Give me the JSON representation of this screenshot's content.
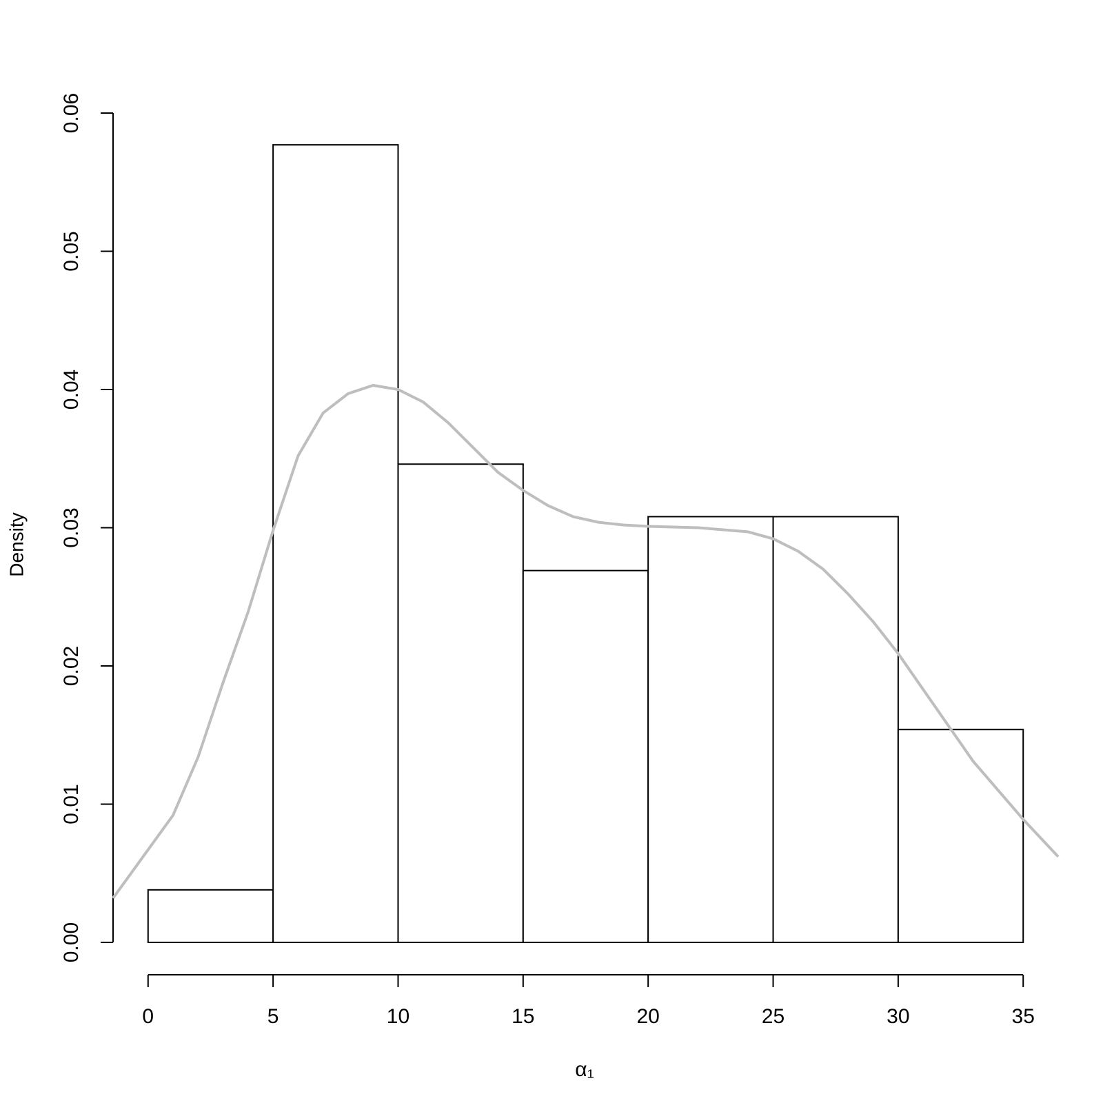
{
  "chart_data": {
    "type": "histogram",
    "xlabel": "α₁",
    "ylabel": "Density",
    "bins": [
      0,
      5,
      10,
      15,
      20,
      25,
      30,
      35
    ],
    "values": [
      0.0038,
      0.0577,
      0.0346,
      0.0269,
      0.0308,
      0.0308,
      0.0154
    ],
    "color": "#ffffff",
    "edgecolor": "#000000",
    "density": {
      "color": "#bebebe",
      "x": [
        -1.4,
        0,
        1,
        2,
        3,
        4,
        5,
        6,
        7,
        8,
        9,
        10,
        11,
        12,
        13,
        14,
        15,
        16,
        17,
        18,
        19,
        20,
        22,
        24,
        25,
        26,
        27,
        28,
        29,
        30,
        31,
        32,
        33,
        34,
        35,
        36.4
      ],
      "y": [
        0.0032,
        0.0067,
        0.0092,
        0.0134,
        0.0188,
        0.0239,
        0.0298,
        0.0352,
        0.0383,
        0.0397,
        0.0403,
        0.04,
        0.0391,
        0.0376,
        0.0358,
        0.034,
        0.0327,
        0.0316,
        0.0308,
        0.0304,
        0.0302,
        0.0301,
        0.03,
        0.0297,
        0.0292,
        0.0283,
        0.027,
        0.0252,
        0.0232,
        0.0209,
        0.0183,
        0.0157,
        0.0131,
        0.011,
        0.0089,
        0.0062
      ]
    },
    "xlim": [
      -1.4,
      36.4
    ],
    "ylim": [
      0,
      0.06
    ],
    "xticks": [
      0,
      5,
      10,
      15,
      20,
      25,
      30,
      35
    ],
    "yticks": [
      {
        "value": 0,
        "label": "0.00"
      },
      {
        "value": 0.01,
        "label": "0.01"
      },
      {
        "value": 0.02,
        "label": "0.02"
      },
      {
        "value": 0.03,
        "label": "0.03"
      },
      {
        "value": 0.04,
        "label": "0.04"
      },
      {
        "value": 0.05,
        "label": "0.05"
      },
      {
        "value": 0.06,
        "label": "0.06"
      }
    ]
  }
}
